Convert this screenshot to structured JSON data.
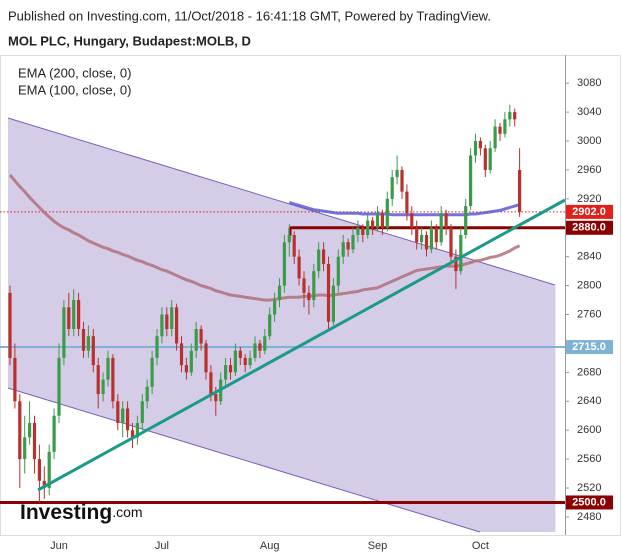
{
  "chart_data": {
    "type": "candlestick",
    "source": "Published on Investing.com, 11/Oct/2018 - 16:41:18 GMT, Powered by TradingView.",
    "title": "MOL PLC, Hungary, Budapest:MOLB, D",
    "logo": "Investing",
    "logo_suffix": ".com",
    "up_color": "#3a9b4a",
    "down_color": "#b8312f",
    "ylim": [
      2455,
      3119
    ],
    "yticks": [
      2480,
      2520,
      2560,
      2600,
      2640,
      2680,
      2760,
      2800,
      2840,
      2920,
      2960,
      3000,
      3040,
      3080
    ],
    "categories": [
      null,
      null,
      null,
      null,
      null,
      null,
      null,
      null,
      null,
      null,
      "Jun",
      null,
      null,
      null,
      null,
      null,
      null,
      null,
      null,
      null,
      null,
      null,
      null,
      null,
      null,
      null,
      null,
      null,
      null,
      null,
      null,
      "Jul",
      null,
      null,
      null,
      null,
      null,
      null,
      null,
      null,
      null,
      null,
      null,
      null,
      null,
      null,
      null,
      null,
      null,
      null,
      null,
      null,
      null,
      "Aug",
      null,
      null,
      null,
      null,
      null,
      null,
      null,
      null,
      null,
      null,
      null,
      null,
      null,
      null,
      null,
      null,
      null,
      null,
      null,
      null,
      null,
      "Sep",
      null,
      null,
      null,
      null,
      null,
      null,
      null,
      null,
      null,
      null,
      null,
      null,
      null,
      null,
      null,
      null,
      null,
      null,
      null,
      null,
      "Oct",
      null,
      null,
      null,
      null,
      null,
      null,
      null,
      null
    ],
    "ohlc": [
      [
        2790,
        2800,
        2690,
        2700
      ],
      [
        2700,
        2720,
        2630,
        2640
      ],
      [
        2640,
        2650,
        2520,
        2560
      ],
      [
        2560,
        2620,
        2540,
        2590
      ],
      [
        2590,
        2640,
        2580,
        2610
      ],
      [
        2610,
        2620,
        2540,
        2560
      ],
      [
        2560,
        2580,
        2500,
        2530
      ],
      [
        2530,
        2550,
        2505,
        2520
      ],
      [
        2520,
        2580,
        2510,
        2570
      ],
      [
        2570,
        2630,
        2560,
        2620
      ],
      [
        2620,
        2720,
        2610,
        2700
      ],
      [
        2700,
        2780,
        2690,
        2770
      ],
      [
        2770,
        2790,
        2730,
        2740
      ],
      [
        2740,
        2795,
        2730,
        2780
      ],
      [
        2780,
        2790,
        2730,
        2740
      ],
      [
        2740,
        2750,
        2700,
        2710
      ],
      [
        2710,
        2745,
        2700,
        2730
      ],
      [
        2730,
        2740,
        2680,
        2690
      ],
      [
        2690,
        2700,
        2630,
        2650
      ],
      [
        2650,
        2680,
        2640,
        2670
      ],
      [
        2670,
        2710,
        2660,
        2700
      ],
      [
        2700,
        2705,
        2630,
        2640
      ],
      [
        2640,
        2650,
        2600,
        2610
      ],
      [
        2610,
        2640,
        2590,
        2630
      ],
      [
        2630,
        2640,
        2590,
        2600
      ],
      [
        2600,
        2610,
        2575,
        2590
      ],
      [
        2590,
        2620,
        2580,
        2610
      ],
      [
        2610,
        2650,
        2600,
        2640
      ],
      [
        2640,
        2670,
        2630,
        2660
      ],
      [
        2660,
        2710,
        2650,
        2700
      ],
      [
        2700,
        2740,
        2690,
        2730
      ],
      [
        2730,
        2770,
        2720,
        2760
      ],
      [
        2760,
        2770,
        2730,
        2740
      ],
      [
        2740,
        2780,
        2730,
        2770
      ],
      [
        2770,
        2775,
        2710,
        2720
      ],
      [
        2720,
        2730,
        2680,
        2690
      ],
      [
        2690,
        2700,
        2670,
        2680
      ],
      [
        2680,
        2720,
        2675,
        2710
      ],
      [
        2710,
        2750,
        2700,
        2740
      ],
      [
        2740,
        2745,
        2710,
        2720
      ],
      [
        2720,
        2725,
        2670,
        2680
      ],
      [
        2680,
        2690,
        2640,
        2650
      ],
      [
        2650,
        2660,
        2620,
        2640
      ],
      [
        2640,
        2680,
        2635,
        2670
      ],
      [
        2670,
        2700,
        2660,
        2690
      ],
      [
        2690,
        2700,
        2670,
        2680
      ],
      [
        2680,
        2720,
        2675,
        2710
      ],
      [
        2710,
        2715,
        2690,
        2700
      ],
      [
        2700,
        2705,
        2680,
        2690
      ],
      [
        2690,
        2710,
        2685,
        2700
      ],
      [
        2700,
        2730,
        2695,
        2720
      ],
      [
        2720,
        2725,
        2700,
        2710
      ],
      [
        2710,
        2740,
        2705,
        2730
      ],
      [
        2730,
        2770,
        2725,
        2760
      ],
      [
        2760,
        2790,
        2750,
        2780
      ],
      [
        2780,
        2810,
        2770,
        2800
      ],
      [
        2800,
        2870,
        2790,
        2860
      ],
      [
        2860,
        2885,
        2840,
        2870
      ],
      [
        2870,
        2875,
        2830,
        2840
      ],
      [
        2840,
        2850,
        2800,
        2810
      ],
      [
        2810,
        2820,
        2770,
        2790
      ],
      [
        2790,
        2800,
        2760,
        2780
      ],
      [
        2780,
        2830,
        2770,
        2820
      ],
      [
        2820,
        2860,
        2810,
        2850
      ],
      [
        2850,
        2860,
        2820,
        2830
      ],
      [
        2830,
        2840,
        2740,
        2750
      ],
      [
        2750,
        2810,
        2745,
        2800
      ],
      [
        2800,
        2850,
        2790,
        2840
      ],
      [
        2840,
        2870,
        2830,
        2860
      ],
      [
        2860,
        2865,
        2840,
        2850
      ],
      [
        2850,
        2880,
        2845,
        2870
      ],
      [
        2870,
        2890,
        2860,
        2880
      ],
      [
        2880,
        2885,
        2860,
        2870
      ],
      [
        2870,
        2900,
        2865,
        2890
      ],
      [
        2890,
        2895,
        2870,
        2880
      ],
      [
        2880,
        2910,
        2875,
        2900
      ],
      [
        2900,
        2905,
        2870,
        2880
      ],
      [
        2880,
        2930,
        2875,
        2920
      ],
      [
        2920,
        2960,
        2910,
        2950
      ],
      [
        2950,
        2980,
        2940,
        2960
      ],
      [
        2960,
        2965,
        2920,
        2930
      ],
      [
        2930,
        2940,
        2890,
        2900
      ],
      [
        2900,
        2910,
        2870,
        2880
      ],
      [
        2880,
        2890,
        2850,
        2860
      ],
      [
        2860,
        2880,
        2850,
        2870
      ],
      [
        2870,
        2875,
        2840,
        2850
      ],
      [
        2850,
        2890,
        2845,
        2880
      ],
      [
        2880,
        2885,
        2850,
        2860
      ],
      [
        2860,
        2910,
        2855,
        2900
      ],
      [
        2900,
        2905,
        2870,
        2880
      ],
      [
        2880,
        2885,
        2830,
        2840
      ],
      [
        2840,
        2850,
        2795,
        2820
      ],
      [
        2820,
        2880,
        2815,
        2870
      ],
      [
        2870,
        2920,
        2865,
        2910
      ],
      [
        2910,
        2990,
        2905,
        2980
      ],
      [
        2980,
        3010,
        2970,
        3000
      ],
      [
        3000,
        3005,
        2980,
        2990
      ],
      [
        2990,
        2995,
        2950,
        2960
      ],
      [
        2960,
        3000,
        2955,
        2990
      ],
      [
        2990,
        3030,
        2985,
        3020
      ],
      [
        3020,
        3025,
        3000,
        3010
      ],
      [
        3010,
        3040,
        3005,
        3030
      ],
      [
        3030,
        3050,
        3020,
        3040
      ],
      [
        3040,
        3045,
        3020,
        3030
      ],
      [
        2960,
        2990,
        2895,
        2902
      ]
    ],
    "series": [
      {
        "name": "EMA (200, close, 0)",
        "color": "#5b5bd6",
        "values": [
          null,
          null,
          null,
          null,
          null,
          null,
          null,
          null,
          null,
          null,
          null,
          null,
          null,
          null,
          null,
          null,
          null,
          null,
          null,
          null,
          null,
          null,
          null,
          null,
          null,
          null,
          null,
          null,
          null,
          null,
          null,
          null,
          null,
          null,
          null,
          null,
          null,
          null,
          null,
          null,
          null,
          null,
          null,
          null,
          null,
          null,
          null,
          null,
          null,
          null,
          null,
          null,
          null,
          null,
          null,
          null,
          null,
          2915,
          2913,
          2911,
          2909,
          2907,
          2905,
          2904,
          2903,
          2902,
          2901,
          2900,
          2900,
          2900,
          2900,
          2900,
          2899,
          2899,
          2899,
          2899,
          2899,
          2899,
          2898,
          2898,
          2898,
          2898,
          2898,
          2898,
          2898,
          2898,
          2898,
          2898,
          2898,
          2898,
          2898,
          2898,
          2898,
          2898,
          2899,
          2899,
          2900,
          2901,
          2902,
          2903,
          2904,
          2906,
          2908,
          2910,
          2912
        ]
      },
      {
        "name": "EMA (100, close, 0)",
        "color": "#b0707a",
        "values": [
          2953,
          2945,
          2937,
          2930,
          2922,
          2915,
          2908,
          2901,
          2895,
          2889,
          2884,
          2880,
          2877,
          2873,
          2870,
          2866,
          2862,
          2859,
          2856,
          2853,
          2851,
          2848,
          2846,
          2843,
          2841,
          2838,
          2835,
          2833,
          2830,
          2828,
          2825,
          2822,
          2820,
          2817,
          2814,
          2811,
          2808,
          2806,
          2803,
          2800,
          2798,
          2796,
          2793,
          2791,
          2789,
          2787,
          2786,
          2785,
          2784,
          2783,
          2782,
          2781,
          2780,
          2780,
          2781,
          2782,
          2783,
          2784,
          2784,
          2784,
          2785,
          2785,
          2786,
          2787,
          2787,
          2786,
          2787,
          2788,
          2789,
          2790,
          2791,
          2792,
          2794,
          2795,
          2796,
          2797,
          2800,
          2803,
          2806,
          2809,
          2812,
          2815,
          2818,
          2821,
          2822,
          2823,
          2824,
          2825,
          2826,
          2827,
          2827,
          2827,
          2828,
          2830,
          2832,
          2834,
          2835,
          2837,
          2839,
          2840,
          2842,
          2845,
          2848,
          2852,
          2855
        ]
      }
    ],
    "levels": [
      {
        "value": 2902,
        "label": "2902.0",
        "color": "#e0201b",
        "style": "dotted"
      },
      {
        "value": 2880,
        "label": "2880.0",
        "color": "#8b0000",
        "style": "thick"
      },
      {
        "value": 2715,
        "label": "2715.0",
        "color": "#7fb3d5",
        "style": "solid"
      },
      {
        "value": 2500,
        "label": "2500.0",
        "color": "#8b0000",
        "style": "thick"
      }
    ]
  }
}
